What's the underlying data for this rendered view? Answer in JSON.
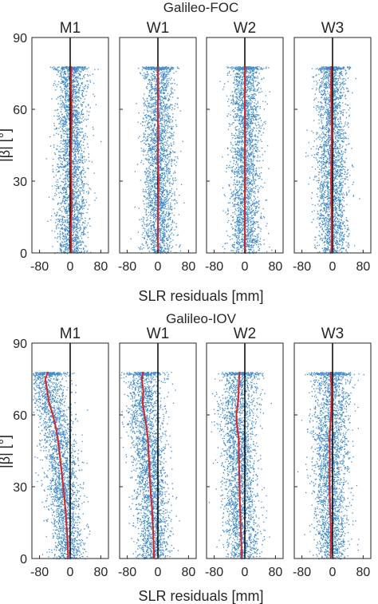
{
  "colors": {
    "scatter": "#1f77c2",
    "median": "#d62728",
    "zero_line": "#000000",
    "axes": "#262626"
  },
  "chart_data": [
    {
      "type": "scatter",
      "group_title": "Galileo-FOC",
      "ylabel": "|β| [°]",
      "xlabel": "SLR residuals [mm]",
      "xlim": [
        -100,
        100
      ],
      "ylim": [
        0,
        90
      ],
      "xticks": [
        -80,
        0,
        80
      ],
      "yticks": [
        0,
        30,
        60,
        90
      ],
      "beta_max": 78,
      "panels": [
        {
          "title": "M1",
          "median": {
            "beta": [
              0,
              10,
              20,
              30,
              40,
              50,
              60,
              70,
              78
            ],
            "residual": [
              3,
              2,
              4,
              3,
              2,
              3,
              4,
              2,
              3
            ]
          }
        },
        {
          "title": "W1",
          "median": {
            "beta": [
              0,
              10,
              20,
              30,
              40,
              50,
              60,
              70,
              78
            ],
            "residual": [
              1,
              0,
              1,
              2,
              0,
              1,
              0,
              1,
              0
            ]
          }
        },
        {
          "title": "W2",
          "median": {
            "beta": [
              0,
              10,
              20,
              30,
              40,
              50,
              60,
              70,
              78
            ],
            "residual": [
              1,
              0,
              0,
              1,
              0,
              1,
              0,
              0,
              1
            ]
          }
        },
        {
          "title": "W3",
          "median": {
            "beta": [
              0,
              10,
              20,
              30,
              40,
              50,
              60,
              70,
              78
            ],
            "residual": [
              -3,
              -2,
              -3,
              -4,
              -3,
              -2,
              -3,
              -4,
              -3
            ]
          }
        }
      ]
    },
    {
      "type": "scatter",
      "group_title": "Galileo-IOV",
      "ylabel": "|β| [°]",
      "xlabel": "SLR residuals [mm]",
      "xlim": [
        -100,
        100
      ],
      "ylim": [
        0,
        90
      ],
      "xticks": [
        -80,
        0,
        80
      ],
      "yticks": [
        0,
        30,
        60,
        90
      ],
      "beta_max": 78,
      "panels": [
        {
          "title": "M1",
          "median": {
            "beta": [
              0,
              10,
              20,
              30,
              40,
              50,
              55,
              60,
              65,
              70,
              75,
              78
            ],
            "residual": [
              -5,
              -8,
              -12,
              -18,
              -25,
              -32,
              -38,
              -45,
              -55,
              -60,
              -65,
              -58
            ]
          }
        },
        {
          "title": "W1",
          "median": {
            "beta": [
              0,
              10,
              20,
              30,
              40,
              50,
              55,
              60,
              65,
              70,
              75,
              78
            ],
            "residual": [
              -10,
              -12,
              -15,
              -20,
              -23,
              -26,
              -30,
              -35,
              -40,
              -38,
              -42,
              -38
            ]
          }
        },
        {
          "title": "W2",
          "median": {
            "beta": [
              0,
              10,
              20,
              30,
              40,
              50,
              55,
              60,
              65,
              70,
              75,
              78
            ],
            "residual": [
              -8,
              -10,
              -12,
              -14,
              -15,
              -16,
              -20,
              -22,
              -18,
              -16,
              -15,
              -14
            ]
          }
        },
        {
          "title": "W3",
          "median": {
            "beta": [
              0,
              10,
              20,
              30,
              40,
              50,
              55,
              60,
              65,
              70,
              75,
              78
            ],
            "residual": [
              -5,
              -4,
              -6,
              -8,
              -7,
              -8,
              -6,
              -4,
              -3,
              -2,
              -4,
              -5
            ]
          }
        }
      ]
    }
  ]
}
